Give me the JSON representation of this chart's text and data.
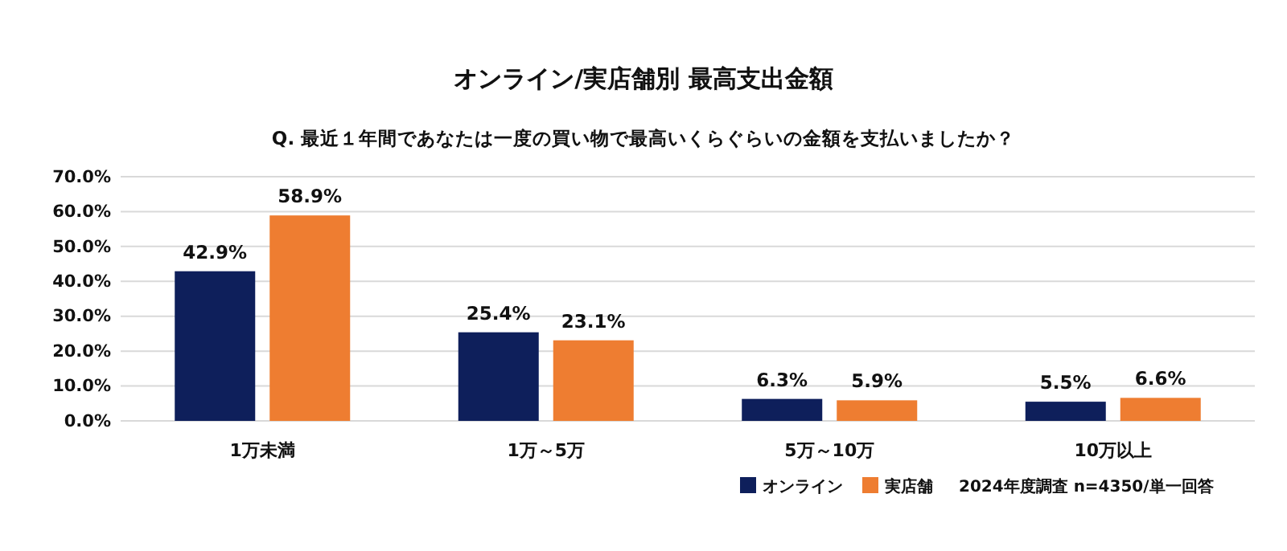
{
  "chart_data": {
    "type": "bar",
    "title": "オンライン/実店舗別  最高支出金額",
    "subtitle": "Q. 最近１年間であなたは一度の買い物で最高いくらぐらいの金額を支払いましたか？",
    "categories": [
      "1万未満",
      "1万～5万",
      "5万～10万",
      "10万以上"
    ],
    "series": [
      {
        "name": "オンライン",
        "color": "#0e1f5b",
        "values": [
          42.9,
          25.4,
          6.3,
          5.5
        ],
        "value_labels": [
          "42.9%",
          "25.4%",
          "6.3%",
          "5.5%"
        ]
      },
      {
        "name": "実店舗",
        "color": "#ee7d31",
        "values": [
          58.9,
          23.1,
          5.9,
          6.6
        ],
        "value_labels": [
          "58.9%",
          "23.1%",
          "5.9%",
          "6.6%"
        ]
      }
    ],
    "ylim": [
      0,
      70
    ],
    "yticks": [
      {
        "value": 0,
        "label": "0.0%"
      },
      {
        "value": 10,
        "label": "10.0%"
      },
      {
        "value": 20,
        "label": "20.0%"
      },
      {
        "value": 30,
        "label": "30.0%"
      },
      {
        "value": 40,
        "label": "40.0%"
      },
      {
        "value": 50,
        "label": "50.0%"
      },
      {
        "value": 60,
        "label": "60.0%"
      },
      {
        "value": 70,
        "label": "70.0%"
      }
    ],
    "grid": "y",
    "legend": "bottom right",
    "annotations": [
      "2024年度調査 n=4350/単一回答"
    ]
  }
}
